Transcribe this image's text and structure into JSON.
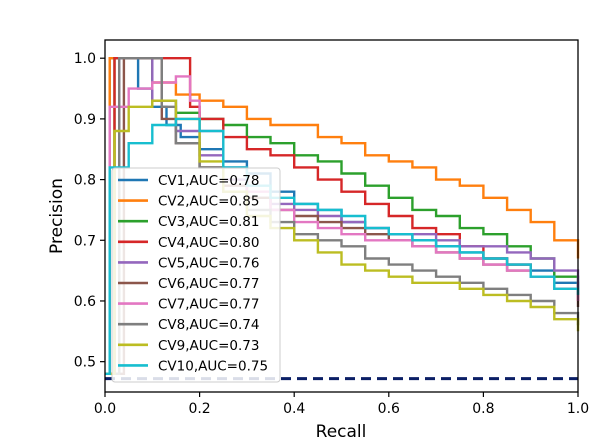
{
  "chart_data": {
    "type": "line",
    "title": "",
    "xlabel": "Recall",
    "ylabel": "Precision",
    "xlim": [
      0.0,
      1.0
    ],
    "ylim": [
      0.45,
      1.03
    ],
    "xticks": [
      "0.0",
      "0.2",
      "0.4",
      "0.6",
      "0.8",
      "1.0"
    ],
    "yticks": [
      "0.5",
      "0.6",
      "0.7",
      "0.8",
      "0.9",
      "1.0"
    ],
    "grid": false,
    "legend_position": "lower-left",
    "baseline": {
      "y": 0.472,
      "color": "#0b1f66",
      "style": "dashed"
    },
    "series": [
      {
        "name": "CV1,AUC=0.78",
        "color": "#1f77b4",
        "points": [
          [
            0.0,
            0.48
          ],
          [
            0.01,
            1.0
          ],
          [
            0.05,
            1.0
          ],
          [
            0.07,
            0.95
          ],
          [
            0.1,
            0.92
          ],
          [
            0.13,
            0.89
          ],
          [
            0.16,
            0.87
          ],
          [
            0.2,
            0.85
          ],
          [
            0.25,
            0.83
          ],
          [
            0.3,
            0.81
          ],
          [
            0.35,
            0.78
          ],
          [
            0.4,
            0.76
          ],
          [
            0.45,
            0.75
          ],
          [
            0.5,
            0.73
          ],
          [
            0.55,
            0.72
          ],
          [
            0.6,
            0.71
          ],
          [
            0.65,
            0.7
          ],
          [
            0.7,
            0.69
          ],
          [
            0.75,
            0.68
          ],
          [
            0.8,
            0.67
          ],
          [
            0.85,
            0.66
          ],
          [
            0.9,
            0.65
          ],
          [
            0.95,
            0.63
          ],
          [
            1.0,
            0.61
          ]
        ]
      },
      {
        "name": "CV2,AUC=0.85",
        "color": "#ff7f0e",
        "points": [
          [
            0.0,
            0.48
          ],
          [
            0.01,
            1.0
          ],
          [
            0.08,
            1.0
          ],
          [
            0.1,
            0.96
          ],
          [
            0.15,
            0.94
          ],
          [
            0.2,
            0.93
          ],
          [
            0.25,
            0.92
          ],
          [
            0.3,
            0.9
          ],
          [
            0.35,
            0.89
          ],
          [
            0.4,
            0.89
          ],
          [
            0.45,
            0.87
          ],
          [
            0.5,
            0.86
          ],
          [
            0.55,
            0.84
          ],
          [
            0.6,
            0.83
          ],
          [
            0.65,
            0.82
          ],
          [
            0.7,
            0.8
          ],
          [
            0.75,
            0.79
          ],
          [
            0.8,
            0.77
          ],
          [
            0.85,
            0.75
          ],
          [
            0.9,
            0.73
          ],
          [
            0.95,
            0.7
          ],
          [
            1.0,
            0.67
          ]
        ]
      },
      {
        "name": "CV3,AUC=0.81",
        "color": "#2ca02c",
        "points": [
          [
            0.0,
            0.48
          ],
          [
            0.02,
            1.0
          ],
          [
            0.06,
            1.0
          ],
          [
            0.1,
            0.93
          ],
          [
            0.15,
            0.91
          ],
          [
            0.2,
            0.9
          ],
          [
            0.25,
            0.89
          ],
          [
            0.3,
            0.87
          ],
          [
            0.35,
            0.86
          ],
          [
            0.4,
            0.84
          ],
          [
            0.45,
            0.83
          ],
          [
            0.5,
            0.81
          ],
          [
            0.55,
            0.79
          ],
          [
            0.6,
            0.77
          ],
          [
            0.65,
            0.75
          ],
          [
            0.7,
            0.74
          ],
          [
            0.75,
            0.72
          ],
          [
            0.8,
            0.71
          ],
          [
            0.85,
            0.69
          ],
          [
            0.9,
            0.67
          ],
          [
            0.95,
            0.64
          ],
          [
            1.0,
            0.61
          ]
        ]
      },
      {
        "name": "CV4,AUC=0.80",
        "color": "#d62728",
        "points": [
          [
            0.0,
            0.48
          ],
          [
            0.02,
            1.0
          ],
          [
            0.16,
            1.0
          ],
          [
            0.18,
            0.92
          ],
          [
            0.2,
            0.9
          ],
          [
            0.25,
            0.87
          ],
          [
            0.3,
            0.85
          ],
          [
            0.35,
            0.84
          ],
          [
            0.4,
            0.82
          ],
          [
            0.45,
            0.8
          ],
          [
            0.5,
            0.78
          ],
          [
            0.55,
            0.76
          ],
          [
            0.6,
            0.74
          ],
          [
            0.65,
            0.72
          ],
          [
            0.7,
            0.71
          ],
          [
            0.75,
            0.69
          ],
          [
            0.8,
            0.67
          ],
          [
            0.85,
            0.66
          ],
          [
            0.9,
            0.64
          ],
          [
            0.95,
            0.62
          ],
          [
            1.0,
            0.6
          ]
        ]
      },
      {
        "name": "CV5,AUC=0.76",
        "color": "#9467bd",
        "points": [
          [
            0.0,
            0.48
          ],
          [
            0.03,
            1.0
          ],
          [
            0.08,
            1.0
          ],
          [
            0.1,
            0.93
          ],
          [
            0.15,
            0.88
          ],
          [
            0.2,
            0.84
          ],
          [
            0.25,
            0.8
          ],
          [
            0.3,
            0.77
          ],
          [
            0.35,
            0.76
          ],
          [
            0.4,
            0.75
          ],
          [
            0.45,
            0.74
          ],
          [
            0.5,
            0.73
          ],
          [
            0.55,
            0.72
          ],
          [
            0.6,
            0.71
          ],
          [
            0.65,
            0.71
          ],
          [
            0.7,
            0.7
          ],
          [
            0.75,
            0.69
          ],
          [
            0.8,
            0.69
          ],
          [
            0.85,
            0.68
          ],
          [
            0.9,
            0.67
          ],
          [
            0.95,
            0.65
          ],
          [
            1.0,
            0.62
          ]
        ]
      },
      {
        "name": "CV6,AUC=0.77",
        "color": "#8c564b",
        "points": [
          [
            0.0,
            0.48
          ],
          [
            0.04,
            1.0
          ],
          [
            0.09,
            1.0
          ],
          [
            0.12,
            0.9
          ],
          [
            0.15,
            0.86
          ],
          [
            0.2,
            0.82
          ],
          [
            0.25,
            0.79
          ],
          [
            0.3,
            0.77
          ],
          [
            0.35,
            0.75
          ],
          [
            0.4,
            0.74
          ],
          [
            0.45,
            0.73
          ],
          [
            0.5,
            0.72
          ],
          [
            0.55,
            0.71
          ],
          [
            0.6,
            0.7
          ],
          [
            0.65,
            0.69
          ],
          [
            0.7,
            0.68
          ],
          [
            0.75,
            0.67
          ],
          [
            0.8,
            0.66
          ],
          [
            0.85,
            0.65
          ],
          [
            0.9,
            0.64
          ],
          [
            0.95,
            0.62
          ],
          [
            1.0,
            0.59
          ]
        ]
      },
      {
        "name": "CV7,AUC=0.77",
        "color": "#e377c2",
        "points": [
          [
            0.0,
            0.48
          ],
          [
            0.01,
            0.92
          ],
          [
            0.05,
            0.95
          ],
          [
            0.1,
            0.96
          ],
          [
            0.15,
            0.97
          ],
          [
            0.18,
            0.93
          ],
          [
            0.2,
            0.88
          ],
          [
            0.25,
            0.82
          ],
          [
            0.3,
            0.78
          ],
          [
            0.35,
            0.75
          ],
          [
            0.4,
            0.73
          ],
          [
            0.45,
            0.72
          ],
          [
            0.5,
            0.71
          ],
          [
            0.55,
            0.7
          ],
          [
            0.6,
            0.7
          ],
          [
            0.65,
            0.69
          ],
          [
            0.7,
            0.68
          ],
          [
            0.75,
            0.67
          ],
          [
            0.8,
            0.66
          ],
          [
            0.85,
            0.65
          ],
          [
            0.9,
            0.64
          ],
          [
            0.95,
            0.62
          ],
          [
            1.0,
            0.6
          ]
        ]
      },
      {
        "name": "CV8,AUC=0.74",
        "color": "#7f7f7f",
        "points": [
          [
            0.0,
            0.48
          ],
          [
            0.03,
            1.0
          ],
          [
            0.1,
            1.0
          ],
          [
            0.12,
            0.92
          ],
          [
            0.15,
            0.86
          ],
          [
            0.2,
            0.82
          ],
          [
            0.25,
            0.78
          ],
          [
            0.3,
            0.75
          ],
          [
            0.35,
            0.73
          ],
          [
            0.4,
            0.71
          ],
          [
            0.45,
            0.7
          ],
          [
            0.5,
            0.69
          ],
          [
            0.55,
            0.67
          ],
          [
            0.6,
            0.66
          ],
          [
            0.65,
            0.65
          ],
          [
            0.7,
            0.64
          ],
          [
            0.75,
            0.63
          ],
          [
            0.8,
            0.62
          ],
          [
            0.85,
            0.61
          ],
          [
            0.9,
            0.6
          ],
          [
            0.95,
            0.58
          ],
          [
            1.0,
            0.56
          ]
        ]
      },
      {
        "name": "CV9,AUC=0.73",
        "color": "#bcbd22",
        "points": [
          [
            0.0,
            0.48
          ],
          [
            0.02,
            0.88
          ],
          [
            0.05,
            0.92
          ],
          [
            0.1,
            0.93
          ],
          [
            0.15,
            0.9
          ],
          [
            0.2,
            0.83
          ],
          [
            0.25,
            0.78
          ],
          [
            0.3,
            0.74
          ],
          [
            0.35,
            0.72
          ],
          [
            0.4,
            0.7
          ],
          [
            0.45,
            0.68
          ],
          [
            0.5,
            0.66
          ],
          [
            0.55,
            0.65
          ],
          [
            0.6,
            0.64
          ],
          [
            0.65,
            0.63
          ],
          [
            0.7,
            0.63
          ],
          [
            0.75,
            0.62
          ],
          [
            0.8,
            0.61
          ],
          [
            0.85,
            0.6
          ],
          [
            0.9,
            0.59
          ],
          [
            0.95,
            0.57
          ],
          [
            1.0,
            0.55
          ]
        ]
      },
      {
        "name": "CV10,AUC=0.75",
        "color": "#17becf",
        "points": [
          [
            0.0,
            0.48
          ],
          [
            0.01,
            0.82
          ],
          [
            0.05,
            0.86
          ],
          [
            0.1,
            0.89
          ],
          [
            0.15,
            0.9
          ],
          [
            0.2,
            0.88
          ],
          [
            0.25,
            0.82
          ],
          [
            0.3,
            0.79
          ],
          [
            0.35,
            0.77
          ],
          [
            0.4,
            0.76
          ],
          [
            0.45,
            0.75
          ],
          [
            0.5,
            0.74
          ],
          [
            0.55,
            0.72
          ],
          [
            0.6,
            0.71
          ],
          [
            0.65,
            0.7
          ],
          [
            0.7,
            0.69
          ],
          [
            0.75,
            0.68
          ],
          [
            0.8,
            0.67
          ],
          [
            0.85,
            0.66
          ],
          [
            0.9,
            0.64
          ],
          [
            0.95,
            0.62
          ],
          [
            1.0,
            0.61
          ]
        ]
      }
    ]
  }
}
